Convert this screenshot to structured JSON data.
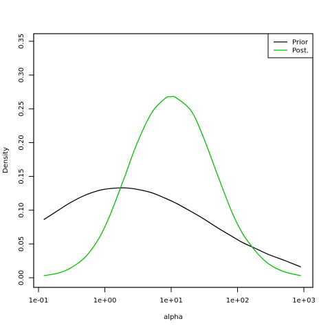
{
  "chart_data": {
    "type": "line",
    "xlabel": "alpha",
    "ylabel": "Density",
    "x_scale": "log",
    "xlim": [
      0.1,
      1000
    ],
    "ylim": [
      0,
      0.35
    ],
    "x_ticks": [
      {
        "value": 0.1,
        "label": "1e-01"
      },
      {
        "value": 1,
        "label": "1e+00"
      },
      {
        "value": 10,
        "label": "1e+01"
      },
      {
        "value": 100,
        "label": "1e+02"
      },
      {
        "value": 1000,
        "label": "1e+03"
      }
    ],
    "y_ticks": [
      {
        "value": 0.0,
        "label": "0.00"
      },
      {
        "value": 0.05,
        "label": "0.05"
      },
      {
        "value": 0.1,
        "label": "0.10"
      },
      {
        "value": 0.15,
        "label": "0.15"
      },
      {
        "value": 0.2,
        "label": "0.20"
      },
      {
        "value": 0.25,
        "label": "0.25"
      },
      {
        "value": 0.3,
        "label": "0.30"
      },
      {
        "value": 0.35,
        "label": "0.35"
      }
    ],
    "legend": {
      "position": "top-right"
    },
    "series": [
      {
        "name": "Prior",
        "color": "#000000",
        "points": [
          [
            0.12,
            0.086
          ],
          [
            0.2,
            0.1
          ],
          [
            0.3,
            0.111
          ],
          [
            0.5,
            0.122
          ],
          [
            0.8,
            0.129
          ],
          [
            1.2,
            0.132
          ],
          [
            2,
            0.133
          ],
          [
            3,
            0.131
          ],
          [
            5,
            0.126
          ],
          [
            8,
            0.118
          ],
          [
            12,
            0.11
          ],
          [
            20,
            0.098
          ],
          [
            30,
            0.088
          ],
          [
            50,
            0.074
          ],
          [
            80,
            0.062
          ],
          [
            120,
            0.052
          ],
          [
            200,
            0.042
          ],
          [
            300,
            0.034
          ],
          [
            500,
            0.026
          ],
          [
            900,
            0.016
          ]
        ]
      },
      {
        "name": "Post.",
        "color": "#00c000",
        "points": [
          [
            0.12,
            0.003
          ],
          [
            0.2,
            0.007
          ],
          [
            0.3,
            0.014
          ],
          [
            0.5,
            0.03
          ],
          [
            0.8,
            0.057
          ],
          [
            1.2,
            0.093
          ],
          [
            2,
            0.15
          ],
          [
            3,
            0.197
          ],
          [
            5,
            0.243
          ],
          [
            8,
            0.265
          ],
          [
            10,
            0.268
          ],
          [
            12,
            0.266
          ],
          [
            20,
            0.247
          ],
          [
            30,
            0.21
          ],
          [
            50,
            0.152
          ],
          [
            80,
            0.1
          ],
          [
            120,
            0.065
          ],
          [
            200,
            0.036
          ],
          [
            300,
            0.02
          ],
          [
            500,
            0.009
          ],
          [
            900,
            0.003
          ]
        ]
      }
    ]
  }
}
